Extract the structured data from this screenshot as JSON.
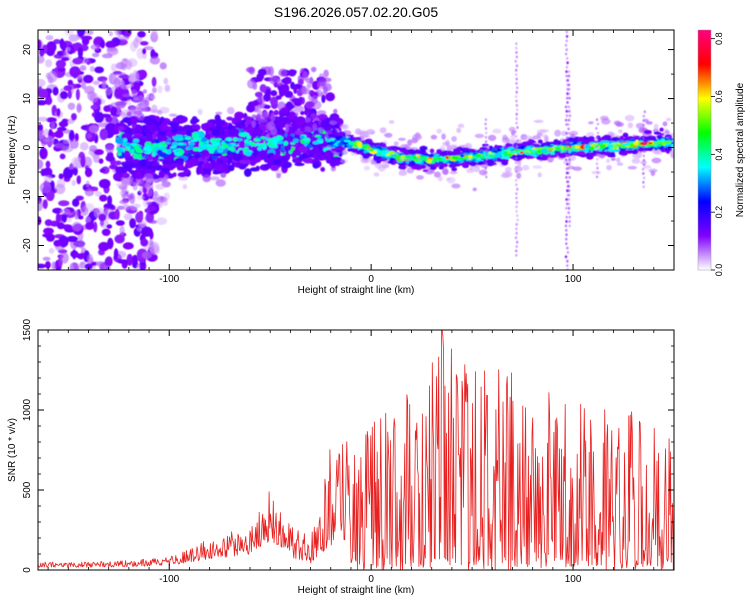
{
  "title": "S196.2026.057.02.20.G05",
  "chart_data": [
    {
      "type": "heatmap",
      "xlabel": "Height of straight line (km)",
      "ylabel": "Frequency (Hz)",
      "xlim": [
        -165,
        150
      ],
      "ylim": [
        -25,
        24
      ],
      "xticks": [
        -100,
        0,
        100
      ],
      "yticks": [
        -20,
        -10,
        0,
        10,
        20
      ],
      "ridge": {
        "x": [
          -125,
          -100,
          -75,
          -50,
          -30,
          -10,
          0,
          15,
          30,
          50,
          70,
          100,
          125,
          148
        ],
        "freq": [
          0,
          0,
          0.5,
          1,
          1.5,
          1,
          -0.5,
          -2,
          -2.5,
          -2,
          -1,
          0,
          0.5,
          1
        ]
      },
      "colorbar": {
        "label": "Normalized spectral amplitude",
        "min": 0,
        "max": 0.83,
        "ticks": [
          0,
          0.2,
          0.4,
          0.6,
          0.8
        ],
        "tick_labels": [
          "0.0",
          "0.2",
          "0.4",
          "0.6",
          "0.8"
        ],
        "colors": [
          "#ffffff",
          "#8000ff",
          "#0000ff",
          "#00ffff",
          "#00ff00",
          "#ffff00",
          "#ff0000",
          "#ff0080"
        ]
      }
    },
    {
      "type": "line",
      "xlabel": "Height of straight line (km)",
      "ylabel": "SNR (10 * v/v)",
      "xlim": [
        -165,
        150
      ],
      "ylim": [
        0,
        1500
      ],
      "xticks": [
        -100,
        0,
        100
      ],
      "yticks": [
        0,
        500,
        1000,
        1500
      ],
      "series": [
        {
          "name": "SNR",
          "color": "#e82020",
          "envelope": {
            "x": [
              -165,
              -140,
              -120,
              -100,
              -90,
              -80,
              -60,
              -50,
              -40,
              -30,
              -20,
              -10,
              0,
              10,
              20,
              30,
              35,
              40,
              50,
              60,
              70,
              80,
              90,
              100,
              110,
              120,
              130,
              140,
              150
            ],
            "y": [
              50,
              50,
              60,
              80,
              140,
              200,
              280,
              520,
              320,
              200,
              780,
              820,
              920,
              1020,
              1220,
              1300,
              1500,
              1400,
              1300,
              1350,
              1250,
              1150,
              1150,
              1000,
              1100,
              1000,
              1000,
              900,
              800
            ]
          }
        }
      ]
    }
  ]
}
